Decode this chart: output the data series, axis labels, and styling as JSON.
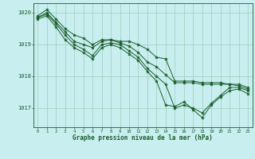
{
  "bg_color": "#c8eef0",
  "grid_color": "#a0ccbb",
  "line_color": "#1a5c2a",
  "title": "Graphe pression niveau de la mer (hPa)",
  "xlim": [
    -0.5,
    23.5
  ],
  "ylim": [
    1016.4,
    1020.3
  ],
  "yticks": [
    1017,
    1018,
    1019,
    1020
  ],
  "xticks": [
    0,
    1,
    2,
    3,
    4,
    5,
    6,
    7,
    8,
    9,
    10,
    11,
    12,
    13,
    14,
    15,
    16,
    17,
    18,
    19,
    20,
    21,
    22,
    23
  ],
  "series": [
    {
      "x": [
        0,
        1,
        2,
        3,
        4,
        5,
        6,
        7,
        8,
        9,
        10,
        11,
        12,
        13,
        14,
        15,
        16,
        17,
        18,
        19,
        20,
        21,
        22,
        23
      ],
      "y": [
        1019.9,
        1020.1,
        1019.8,
        1019.5,
        1019.3,
        1019.2,
        1019.0,
        1019.15,
        1019.15,
        1019.1,
        1019.1,
        1019.0,
        1018.85,
        1018.6,
        1018.55,
        1017.85,
        1017.85,
        1017.85,
        1017.8,
        1017.8,
        1017.8,
        1017.75,
        1017.75,
        1017.65
      ]
    },
    {
      "x": [
        0,
        1,
        2,
        3,
        4,
        5,
        6,
        7,
        8,
        9,
        10,
        11,
        12,
        13,
        14,
        15,
        16,
        17,
        18,
        19,
        20,
        21,
        22,
        23
      ],
      "y": [
        1019.85,
        1020.0,
        1019.7,
        1019.4,
        1019.1,
        1019.0,
        1018.9,
        1019.1,
        1019.15,
        1019.05,
        1018.95,
        1018.75,
        1018.45,
        1018.3,
        1018.05,
        1017.8,
        1017.8,
        1017.8,
        1017.75,
        1017.75,
        1017.75,
        1017.75,
        1017.7,
        1017.6
      ]
    },
    {
      "x": [
        0,
        1,
        2,
        3,
        4,
        5,
        6,
        7,
        8,
        9,
        10,
        11,
        12,
        13,
        14,
        15,
        16,
        17,
        18,
        19,
        20,
        21,
        22,
        23
      ],
      "y": [
        1019.85,
        1019.95,
        1019.65,
        1019.3,
        1019.0,
        1018.85,
        1018.65,
        1019.0,
        1019.05,
        1019.0,
        1018.8,
        1018.6,
        1018.25,
        1018.0,
        1017.75,
        1017.0,
        1017.1,
        1017.0,
        1016.85,
        1017.15,
        1017.4,
        1017.65,
        1017.65,
        1017.55
      ]
    },
    {
      "x": [
        0,
        1,
        2,
        3,
        4,
        5,
        6,
        7,
        8,
        9,
        10,
        11,
        12,
        13,
        14,
        15,
        16,
        17,
        18,
        19,
        20,
        21,
        22,
        23
      ],
      "y": [
        1019.8,
        1019.9,
        1019.55,
        1019.15,
        1018.9,
        1018.75,
        1018.55,
        1018.9,
        1019.0,
        1018.9,
        1018.7,
        1018.5,
        1018.15,
        1017.85,
        1017.1,
        1017.05,
        1017.2,
        1016.95,
        1016.7,
        1017.1,
        1017.35,
        1017.55,
        1017.6,
        1017.45
      ]
    }
  ]
}
